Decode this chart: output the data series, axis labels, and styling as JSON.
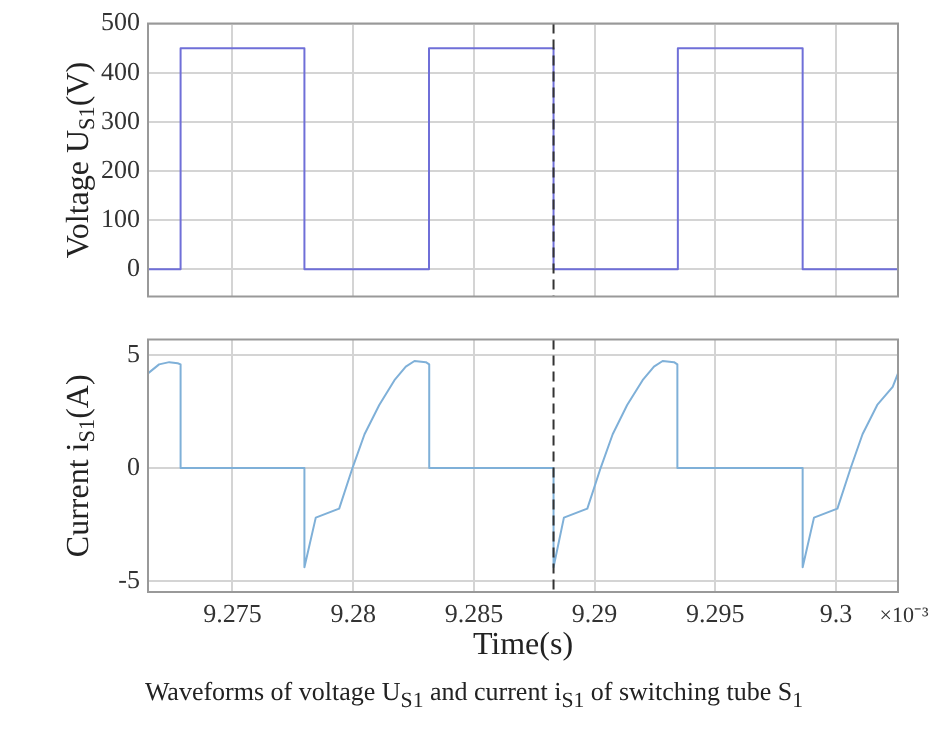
{
  "chart_data": [
    {
      "type": "step",
      "ylabel": "Voltage U$_{S1}$(V)",
      "xlim": [
        9.2715,
        9.30257
      ],
      "xticks": [
        9.275,
        9.28,
        9.285,
        9.29,
        9.295,
        9.3
      ],
      "ylim": [
        -55,
        500
      ],
      "yticks": [
        0,
        100,
        200,
        300,
        400,
        500
      ],
      "tick_labels": "y",
      "grid": true,
      "series": [
        {
          "color": "#6f6fd8",
          "x": [
            9.2715,
            9.27285,
            9.27798,
            9.28314,
            9.2883,
            9.29345,
            9.29862,
            9.30257
          ],
          "values": [
            0,
            450,
            0,
            450,
            0,
            450,
            0,
            0
          ]
        }
      ],
      "ref_lines": [
        {
          "axis": "x",
          "value": 9.2883,
          "color": "#333333",
          "line_style": "dashed"
        }
      ]
    },
    {
      "type": "line",
      "ylabel": "Current i$_{S1}$(A)",
      "xlabel": "Time(s)",
      "xlim": [
        9.2715,
        9.30257
      ],
      "xticks": [
        9.275,
        9.28,
        9.285,
        9.29,
        9.295,
        9.3
      ],
      "ylim": [
        -5.5,
        5.7
      ],
      "yticks": [
        -5,
        0,
        5
      ],
      "grid": true,
      "series": [
        {
          "color": "#7fb0d8",
          "x": [
            9.2715,
            9.27196,
            9.27238,
            9.27273,
            9.27285,
            9.27285,
            9.27798,
            9.27798,
            9.27845,
            9.27942,
            9.27997,
            9.28047,
            9.28108,
            9.28171,
            9.28218,
            9.28254,
            9.28301,
            9.28315,
            9.28315,
            9.2883,
            9.2883,
            9.28873,
            9.2897,
            9.29025,
            9.29075,
            9.29135,
            9.29199,
            9.29246,
            9.29282,
            9.29329,
            9.29343,
            9.29343,
            9.29862,
            9.29862,
            9.29909,
            9.30006,
            9.30061,
            9.3011,
            9.30171,
            9.30235,
            9.30257
          ],
          "values": [
            4.2,
            4.6,
            4.7,
            4.65,
            4.6,
            0,
            0,
            -4.4,
            -2.2,
            -1.8,
            0,
            1.5,
            2.8,
            3.9,
            4.5,
            4.75,
            4.7,
            4.6,
            0,
            0,
            -4.4,
            -2.2,
            -1.8,
            0,
            1.5,
            2.8,
            3.9,
            4.5,
            4.75,
            4.7,
            4.6,
            0,
            0,
            -4.4,
            -2.2,
            -1.8,
            0,
            1.5,
            2.8,
            3.6,
            4.2
          ]
        }
      ],
      "ref_lines": [
        {
          "axis": "x",
          "value": 9.2883,
          "color": "#333333",
          "line_style": "dashed"
        }
      ],
      "annotations": [
        "×10⁻³",
        "Waveforms of voltage U$_{S1}$ and current i$_{S1}$ of switching tube S$_{1}$"
      ]
    }
  ]
}
